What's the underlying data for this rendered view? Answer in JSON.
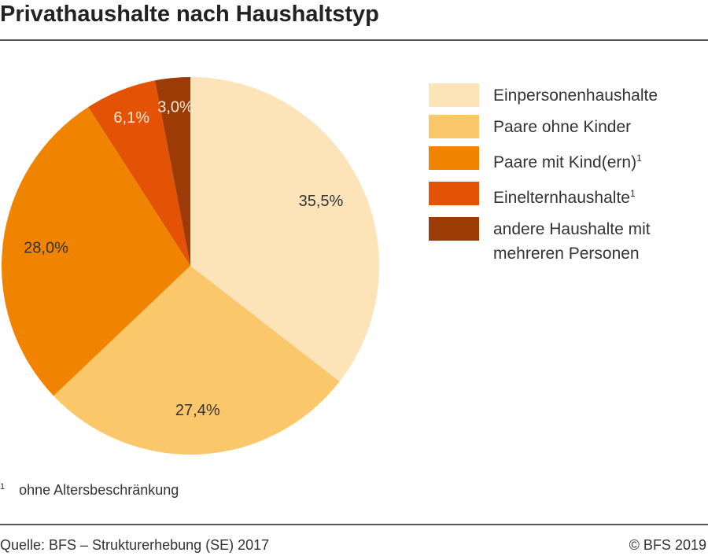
{
  "title": "Privathaushalte nach Haushaltstyp",
  "chart_data": {
    "type": "pie",
    "categories": [
      "Einpersonenhaushalte",
      "Paare ohne Kinder",
      "Paare mit Kind(ern)",
      "Einelternhaushalte",
      "andere Haushalte mit mehreren Personen"
    ],
    "category_notes": [
      null,
      null,
      "1",
      "1",
      null
    ],
    "values": [
      35.5,
      27.4,
      28.0,
      6.1,
      3.0
    ],
    "value_labels": [
      "35,5%",
      "27,4%",
      "28,0%",
      "6,1%",
      "3,0%"
    ],
    "colors": [
      "#fde3b8",
      "#fbc76b",
      "#f08400",
      "#e35205",
      "#9c3b06"
    ],
    "legend": "right"
  },
  "footnote": {
    "mark": "1",
    "text": "ohne Altersbeschränkung"
  },
  "source": "Quelle: BFS – Strukturerhebung (SE) 2017",
  "copyright": "© BFS 2019"
}
